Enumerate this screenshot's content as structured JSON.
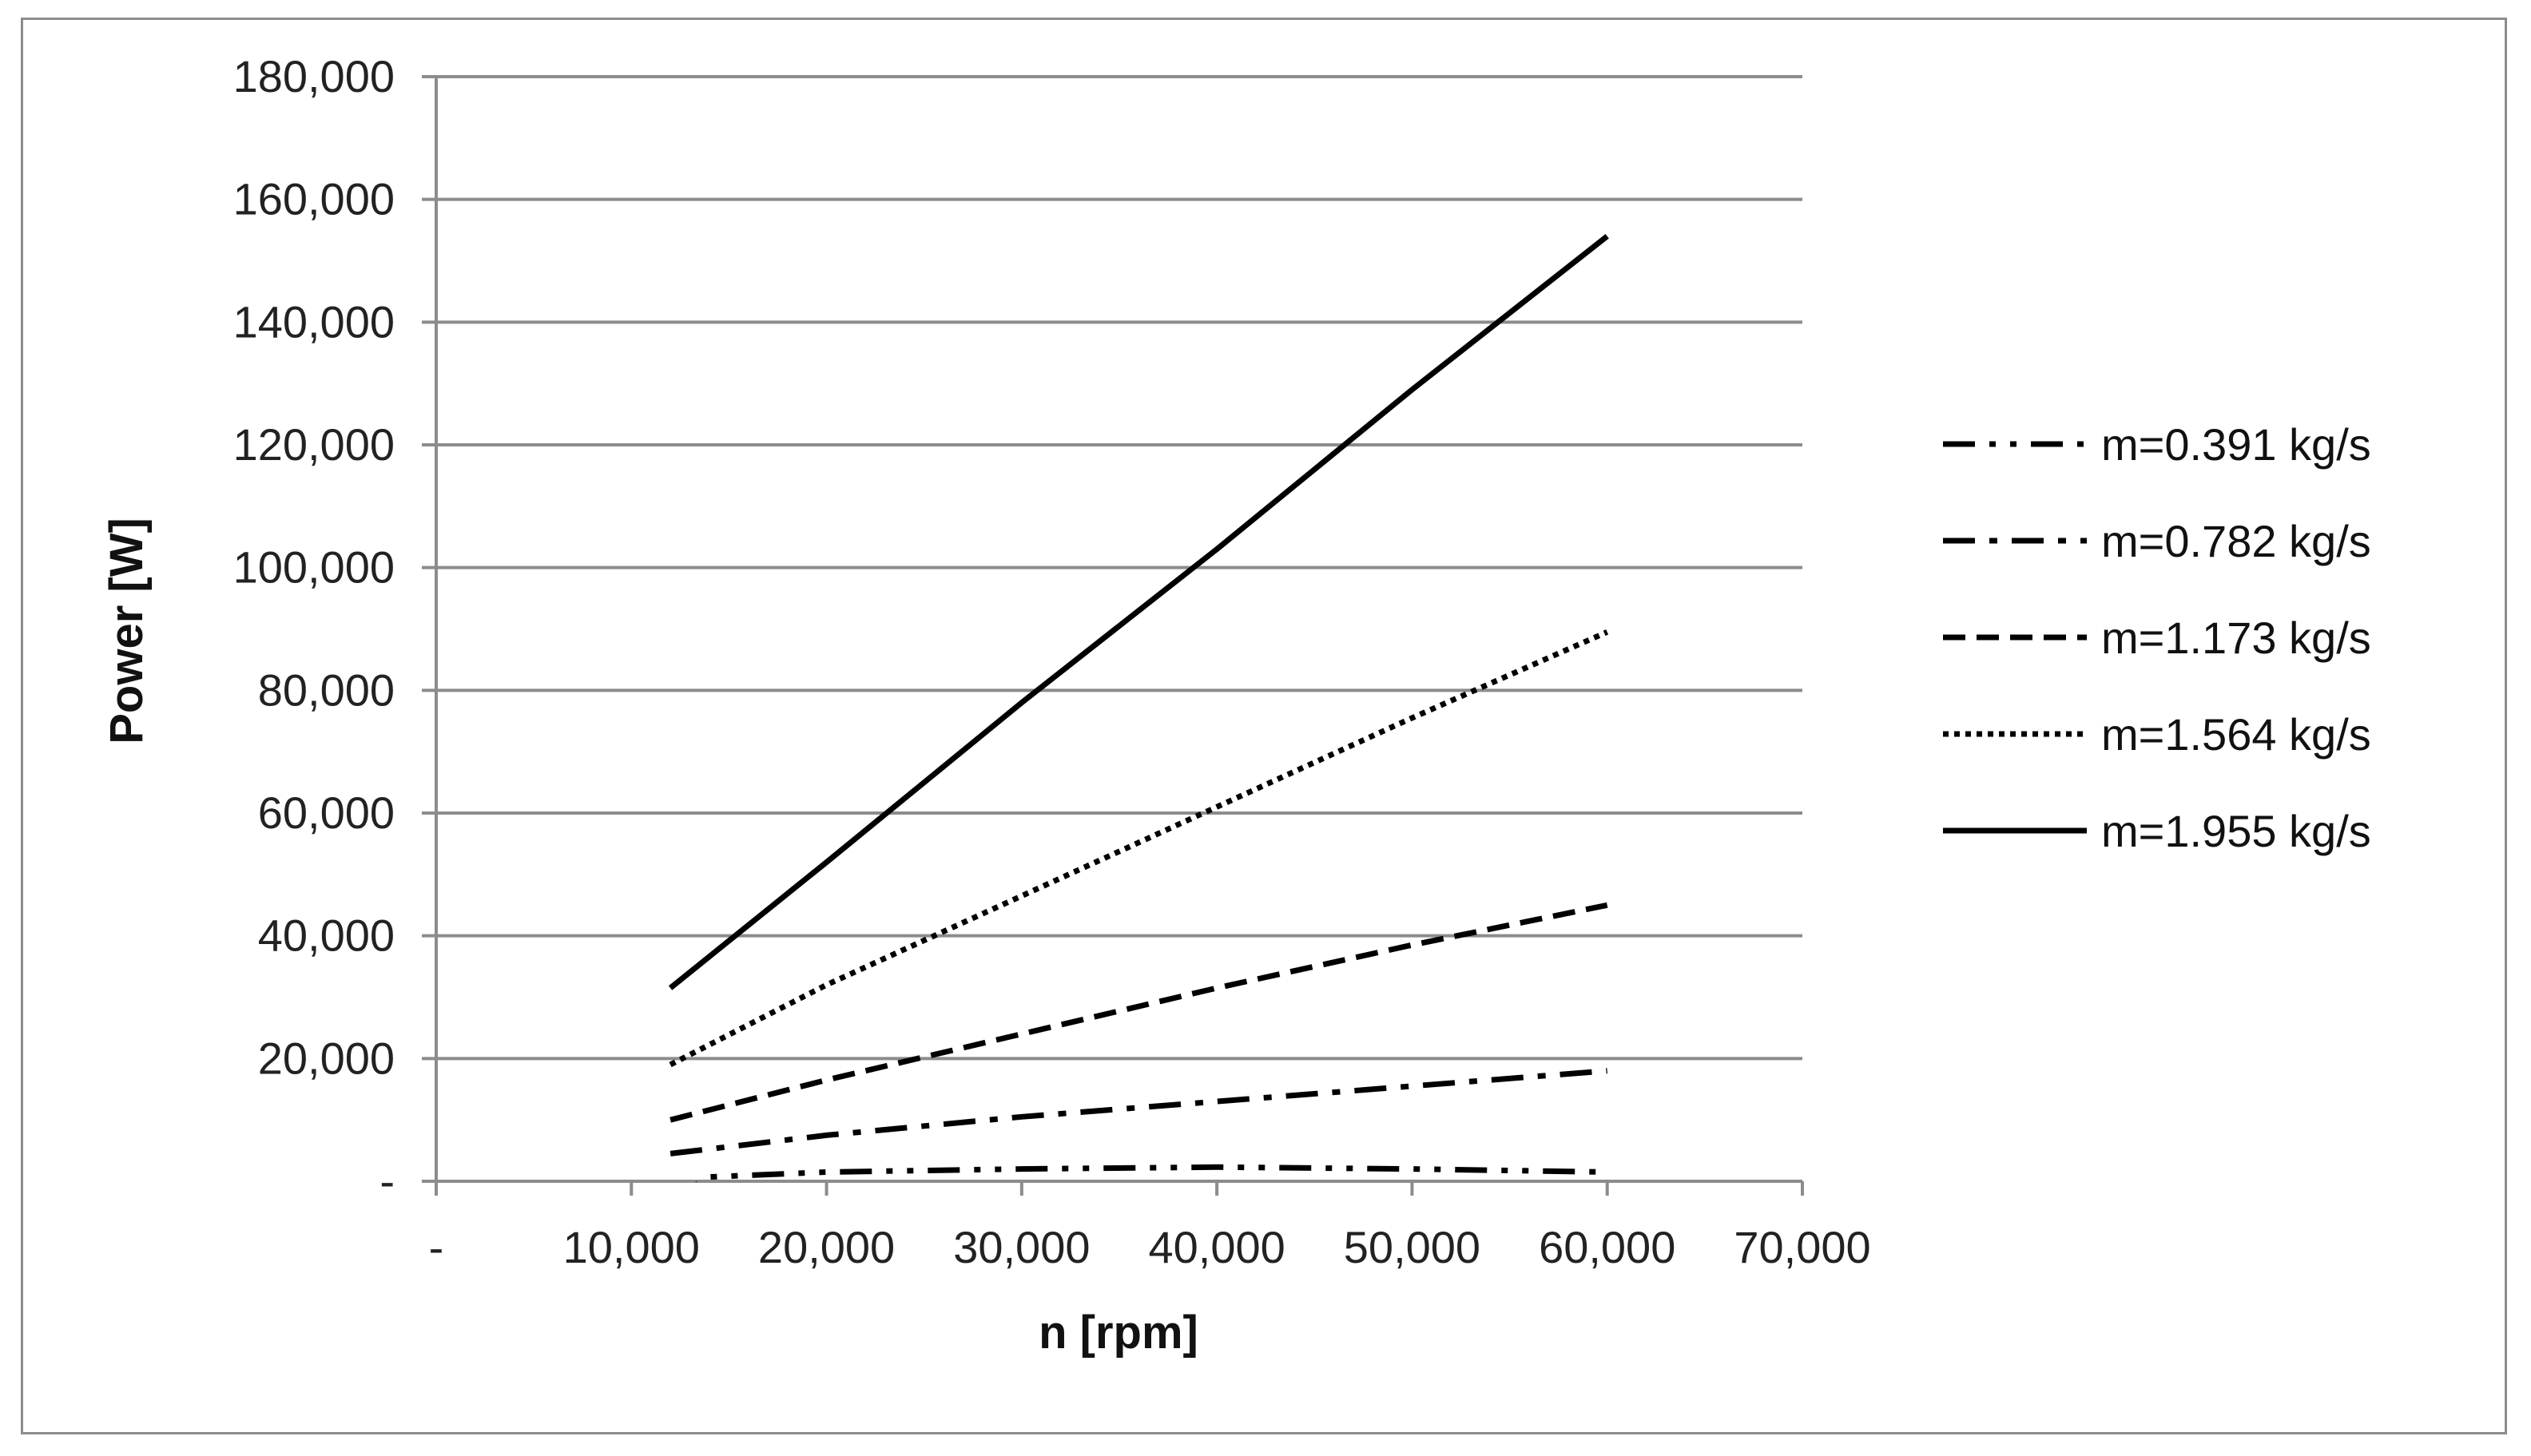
{
  "chart_data": {
    "type": "line",
    "xlabel": "n [rpm]",
    "ylabel": "Power [W]",
    "xlim": [
      0,
      70000
    ],
    "ylim": [
      0,
      180000
    ],
    "x_ticks": [
      "-",
      "10,000",
      "20,000",
      "30,000",
      "40,000",
      "50,000",
      "60,000",
      "70,000"
    ],
    "x_tick_values": [
      0,
      10000,
      20000,
      30000,
      40000,
      50000,
      60000,
      70000
    ],
    "y_ticks": [
      "-",
      "20,000",
      "40,000",
      "60,000",
      "80,000",
      "100,000",
      "120,000",
      "140,000",
      "160,000",
      "180,000"
    ],
    "y_tick_values": [
      0,
      20000,
      40000,
      60000,
      80000,
      100000,
      120000,
      140000,
      160000,
      180000
    ],
    "grid": "horizontal",
    "legend_position": "right",
    "series": [
      {
        "name": "m=0.391 kg/s",
        "dash": "long-dash-dot-dot",
        "x": [
          12000,
          14000,
          20000,
          30000,
          40000,
          50000,
          60000
        ],
        "y": [
          -3000,
          700,
          1500,
          2000,
          2300,
          2000,
          1500
        ]
      },
      {
        "name": "m=0.782 kg/s",
        "dash": "long-dash-dot",
        "x": [
          12000,
          20000,
          30000,
          40000,
          50000,
          60000
        ],
        "y": [
          4500,
          7500,
          10500,
          13000,
          15500,
          18000
        ]
      },
      {
        "name": "m=1.173 kg/s",
        "dash": "dash",
        "x": [
          12000,
          20000,
          30000,
          40000,
          50000,
          60000
        ],
        "y": [
          10000,
          16500,
          24000,
          31500,
          38500,
          45000
        ]
      },
      {
        "name": "m=1.564 kg/s",
        "dash": "dot",
        "x": [
          12000,
          20000,
          30000,
          40000,
          50000,
          60000
        ],
        "y": [
          19000,
          32000,
          46500,
          61000,
          75500,
          89500
        ]
      },
      {
        "name": "m=1.955 kg/s",
        "dash": "solid",
        "x": [
          12000,
          20000,
          30000,
          40000,
          50000,
          60000
        ],
        "y": [
          31500,
          52000,
          78000,
          103000,
          129000,
          154000
        ]
      }
    ]
  }
}
